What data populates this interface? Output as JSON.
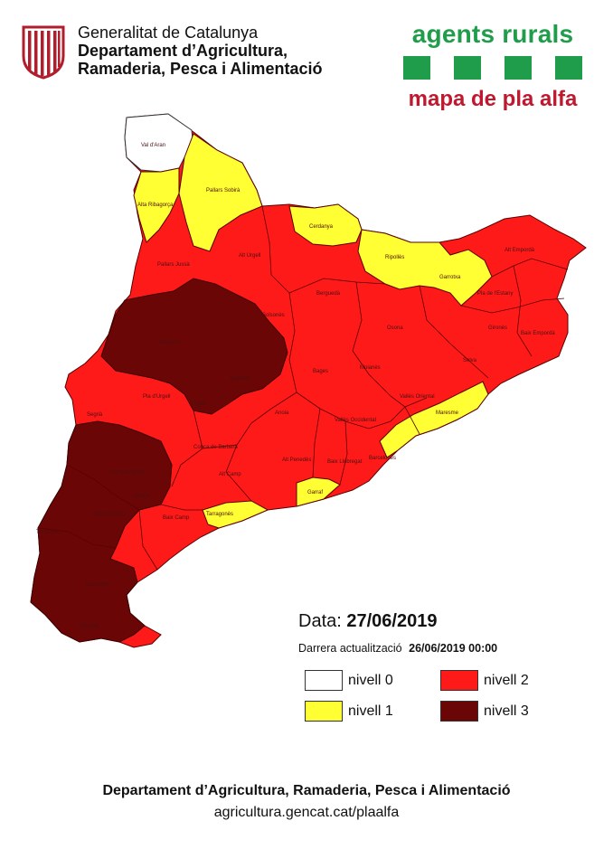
{
  "header": {
    "gov_line1": "Generalitat de Catalunya",
    "gov_line2": "Departament d’Agricultura,",
    "gov_line3": "Ramaderia, Pesca i Alimentació"
  },
  "brand": {
    "title": "agents rurals",
    "subtitle": "mapa de pla alfa",
    "color": "#1f9d4a",
    "subtitle_color": "#c0182e"
  },
  "map": {
    "level_colors": {
      "0": "#ffffff",
      "1": "#ffff33",
      "2": "#ff1a1a",
      "3": "#6b0606"
    },
    "labels": [
      "Val d'Aran",
      "Pallars Sobirà",
      "Alta Ribagorça",
      "Alt Urgell",
      "Cerdanya",
      "Ripollès",
      "Garrotxa",
      "Alt Empordà",
      "Pallars Jussà",
      "Berguedà",
      "Solsonès",
      "Osona",
      "Pla de l'Estany",
      "Gironès",
      "Baix Empordà",
      "Selva",
      "Noguera",
      "Segarra",
      "Bages",
      "Moianès",
      "Vallès Oriental",
      "Maresme",
      "Segrià",
      "Pla d'Urgell",
      "Urgell",
      "Anoia",
      "Vallès Occidental",
      "Barcelonès",
      "Baix Llobregat",
      "Alt Penedès",
      "Garraf",
      "Conca de Barberà",
      "Alt Camp",
      "Les Garrigues",
      "Priorat",
      "Baix Camp",
      "Tarragonès",
      "Ribera d'Ebre",
      "Terra Alta",
      "Baix Ebre",
      "Montsià"
    ]
  },
  "date": {
    "label": "Data:",
    "value": "27/06/2019"
  },
  "update": {
    "label": "Darrera actualització",
    "value": "26/06/2019  00:00"
  },
  "legend": [
    {
      "label": "nivell 0",
      "color": "#ffffff"
    },
    {
      "label": "nivell 2",
      "color": "#ff1a1a"
    },
    {
      "label": "nivell 1",
      "color": "#ffff33"
    },
    {
      "label": "nivell 3",
      "color": "#6b0606"
    }
  ],
  "footer": {
    "line1": "Departament d’Agricultura, Ramaderia, Pesca i Alimentació",
    "line2": "agricultura.gencat.cat/plaalfa"
  }
}
